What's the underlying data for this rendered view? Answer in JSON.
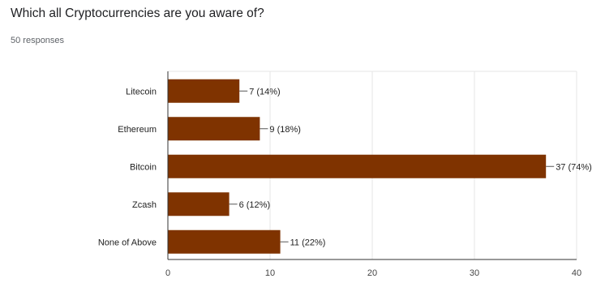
{
  "question": {
    "title": "Which all Cryptocurrencies are you aware of?",
    "responses": "50 responses"
  },
  "colors": {
    "bar": "#7f3300",
    "grid": "#e6e6e6",
    "axis": "#333333"
  },
  "chart_data": {
    "type": "bar",
    "orientation": "horizontal",
    "categories": [
      "Litecoin",
      "Ethereum",
      "Bitcoin",
      "Zcash",
      "None of Above"
    ],
    "values": [
      7,
      9,
      37,
      6,
      11
    ],
    "data_labels": [
      "7 (14%)",
      "9 (18%)",
      "37 (74%)",
      "6 (12%)",
      "11 (22%)"
    ],
    "xlim": [
      0,
      40
    ],
    "xticks": [
      0,
      10,
      20,
      30,
      40
    ],
    "grid": true,
    "legend": "none"
  }
}
